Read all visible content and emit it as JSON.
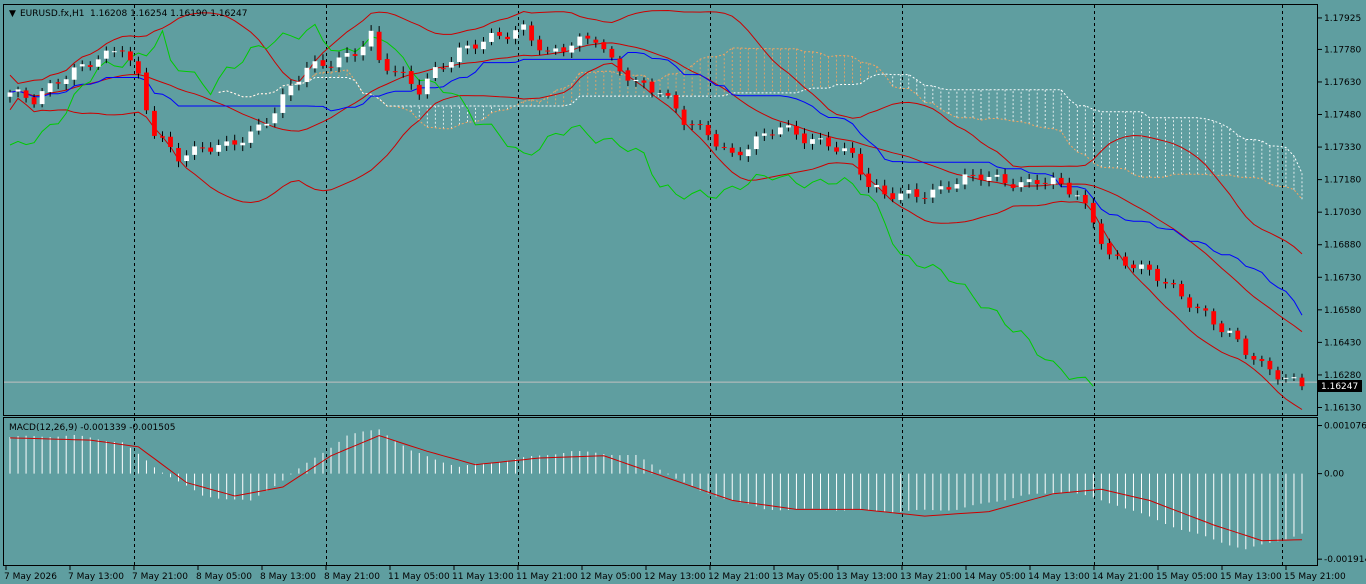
{
  "header": {
    "symbol": "EURUSD.fx,H1",
    "ohlc": "1.16208 1.16254 1.16190 1.16247"
  },
  "macd_header": {
    "label": "MACD(12,26,9) -0.001339 -0.001505"
  },
  "colors": {
    "background": "#5f9ea0",
    "bull_candle": "#ffffff",
    "bear_candle": "#ff0000",
    "bollinger": "#cc0000",
    "kijun": "#0000ff",
    "chikou": "#00cc00",
    "cloud_a": "#ffffff",
    "cloud_b": "#f4a460",
    "macd_hist": "#ffffff",
    "macd_signal": "#cc0000",
    "grid": "#000000"
  },
  "chart_data": [
    {
      "type": "candlestick",
      "name": "price",
      "price_ticks": [
        "1.17925",
        "1.17780",
        "1.17630",
        "1.17480",
        "1.17330",
        "1.17180",
        "1.17030",
        "1.16880",
        "1.16730",
        "1.16580",
        "1.16430",
        "1.16280",
        "1.16130"
      ],
      "current_price": "1.16247",
      "ylim": [
        1.161,
        1.1798
      ],
      "x_labels": [
        "7 May 2026",
        "7 May 13:00",
        "7 May 21:00",
        "8 May 05:00",
        "8 May 13:00",
        "8 May 21:00",
        "11 May 05:00",
        "11 May 13:00",
        "11 May 21:00",
        "12 May 05:00",
        "12 May 13:00",
        "12 May 21:00",
        "13 May 05:00",
        "13 May 13:00",
        "13 May 21:00",
        "14 May 05:00",
        "14 May 13:00",
        "14 May 21:00",
        "15 May 05:00",
        "15 May 13:00",
        "15 May 21:00"
      ],
      "day_separators": [
        "7 May 21:00",
        "8 May 21:00",
        "11 May 21:00",
        "12 May 21:00",
        "13 May 21:00",
        "14 May 21:00",
        "15 May 21:00"
      ],
      "close_path": [
        [
          0,
          1.1757
        ],
        [
          3,
          1.1754
        ],
        [
          6,
          1.1765
        ],
        [
          9,
          1.1771
        ],
        [
          12,
          1.1774
        ],
        [
          14,
          1.1778
        ],
        [
          16,
          1.1765
        ],
        [
          17,
          1.1752
        ],
        [
          18,
          1.1741
        ],
        [
          21,
          1.1729
        ],
        [
          24,
          1.1731
        ],
        [
          27,
          1.1733
        ],
        [
          30,
          1.174
        ],
        [
          33,
          1.175
        ],
        [
          35,
          1.176
        ],
        [
          37,
          1.1768
        ],
        [
          40,
          1.1772
        ],
        [
          43,
          1.1778
        ],
        [
          45,
          1.1785
        ],
        [
          46,
          1.1772
        ],
        [
          49,
          1.1764
        ],
        [
          51,
          1.1759
        ],
        [
          53,
          1.1769
        ],
        [
          56,
          1.1778
        ],
        [
          59,
          1.1781
        ],
        [
          62,
          1.1784
        ],
        [
          64,
          1.1788
        ],
        [
          67,
          1.1777
        ],
        [
          70,
          1.178
        ],
        [
          73,
          1.1782
        ],
        [
          75,
          1.1772
        ],
        [
          78,
          1.1764
        ],
        [
          81,
          1.1759
        ],
        [
          84,
          1.1744
        ],
        [
          87,
          1.1739
        ],
        [
          90,
          1.173
        ],
        [
          93,
          1.1736
        ],
        [
          96,
          1.1741
        ],
        [
          99,
          1.1737
        ],
        [
          102,
          1.1736
        ],
        [
          105,
          1.1729
        ],
        [
          107,
          1.1714
        ],
        [
          109,
          1.171
        ],
        [
          112,
          1.1712
        ],
        [
          115,
          1.1713
        ],
        [
          118,
          1.1716
        ],
        [
          121,
          1.1719
        ],
        [
          124,
          1.1718
        ],
        [
          126,
          1.1717
        ],
        [
          128,
          1.1718
        ],
        [
          130,
          1.1716
        ],
        [
          133,
          1.171
        ],
        [
          135,
          1.1699
        ],
        [
          137,
          1.1684
        ],
        [
          140,
          1.1679
        ],
        [
          143,
          1.1672
        ],
        [
          146,
          1.1664
        ],
        [
          149,
          1.1657
        ],
        [
          152,
          1.1647
        ],
        [
          154,
          1.1638
        ],
        [
          156,
          1.1631
        ],
        [
          158,
          1.1628
        ],
        [
          161,
          1.1625
        ]
      ]
    },
    {
      "type": "histogram+line",
      "name": "MACD(12,26,9)",
      "ticks": [
        "0.001076",
        "0.00",
        "-0.001914"
      ],
      "ylim": [
        -0.002,
        0.0012
      ],
      "histogram_path": [
        [
          0,
          0.00082
        ],
        [
          8,
          0.00085
        ],
        [
          14,
          0.0007
        ],
        [
          18,
          0.00015
        ],
        [
          24,
          -0.0005
        ],
        [
          30,
          -0.00062
        ],
        [
          36,
          0.0001
        ],
        [
          42,
          0.00085
        ],
        [
          46,
          0.001
        ],
        [
          50,
          0.0005
        ],
        [
          56,
          0.00015
        ],
        [
          62,
          0.0003
        ],
        [
          70,
          0.0005
        ],
        [
          78,
          0.0004
        ],
        [
          86,
          -0.0004
        ],
        [
          94,
          -0.0008
        ],
        [
          102,
          -0.0008
        ],
        [
          110,
          -0.00085
        ],
        [
          118,
          -0.0008
        ],
        [
          126,
          -0.0005
        ],
        [
          132,
          -0.0004
        ],
        [
          138,
          -0.0007
        ],
        [
          146,
          -0.00125
        ],
        [
          154,
          -0.0017
        ],
        [
          161,
          -0.00135
        ]
      ],
      "signal_path": [
        [
          0,
          0.0008
        ],
        [
          10,
          0.00075
        ],
        [
          16,
          0.0006
        ],
        [
          22,
          -0.0002
        ],
        [
          28,
          -0.0005
        ],
        [
          34,
          -0.0003
        ],
        [
          40,
          0.0004
        ],
        [
          46,
          0.00085
        ],
        [
          52,
          0.0005
        ],
        [
          58,
          0.0002
        ],
        [
          66,
          0.00035
        ],
        [
          74,
          0.0004
        ],
        [
          82,
          -0.0001
        ],
        [
          90,
          -0.0006
        ],
        [
          98,
          -0.0008
        ],
        [
          106,
          -0.0008
        ],
        [
          114,
          -0.00095
        ],
        [
          122,
          -0.00085
        ],
        [
          130,
          -0.00045
        ],
        [
          136,
          -0.00035
        ],
        [
          142,
          -0.0006
        ],
        [
          150,
          -0.00115
        ],
        [
          156,
          -0.0015
        ],
        [
          161,
          -0.00148
        ]
      ]
    }
  ]
}
